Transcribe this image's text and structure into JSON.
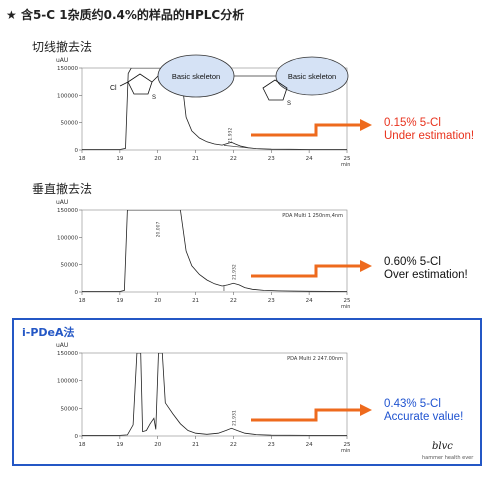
{
  "title": {
    "star": "★",
    "text": "含5-C 1杂质约0.4%的样品的HPLC分析"
  },
  "logo": {
    "mark": "blvc",
    "sub": "hammer health ever"
  },
  "chart_data": [
    {
      "type": "line",
      "method_label": "切线撤去法",
      "ylabel": "uAU",
      "xlabel": "min",
      "xlim": [
        18,
        25
      ],
      "ylim": [
        0,
        150000
      ],
      "x_ticks": [
        "18",
        "19",
        "20",
        "21",
        "22",
        "23",
        "24",
        "25"
      ],
      "y_ticks": [
        "0",
        "50000",
        "100000",
        "150000"
      ],
      "detector_label": "",
      "peak_labels": [
        {
          "x": 21.95,
          "y": 12000,
          "text": "21.932"
        }
      ],
      "bubbles": [
        "Basic skeleton",
        "Basic skeleton"
      ],
      "structure_label": "Cl",
      "result_lines": [
        "0.15% 5-Cl",
        "Under estimation!"
      ],
      "result_color": "#e8321d",
      "trace": [
        [
          18.0,
          1000
        ],
        [
          19.0,
          1000
        ],
        [
          19.15,
          3000
        ],
        [
          19.22,
          140000
        ],
        [
          19.3,
          150000
        ],
        [
          20.2,
          150000
        ],
        [
          20.6,
          150000
        ],
        [
          20.75,
          60000
        ],
        [
          20.9,
          35000
        ],
        [
          21.1,
          22000
        ],
        [
          21.3,
          15000
        ],
        [
          21.5,
          11000
        ],
        [
          21.7,
          9000
        ],
        [
          21.85,
          12000
        ],
        [
          21.95,
          14000
        ],
        [
          22.05,
          11000
        ],
        [
          22.2,
          7000
        ],
        [
          22.4,
          4000
        ],
        [
          22.6,
          2500
        ],
        [
          23.0,
          1500
        ],
        [
          23.5,
          1200
        ],
        [
          24.0,
          1000
        ],
        [
          25.0,
          1000
        ]
      ],
      "baseline_segment": [
        [
          21.75,
          8500
        ],
        [
          22.4,
          3800
        ]
      ]
    },
    {
      "type": "line",
      "method_label": "垂直撤去法",
      "ylabel": "uAU",
      "xlabel": "min",
      "xlim": [
        18,
        25
      ],
      "ylim": [
        0,
        150000
      ],
      "x_ticks": [
        "18",
        "19",
        "20",
        "21",
        "22",
        "23",
        "24",
        "25"
      ],
      "y_ticks": [
        "0",
        "50000",
        "100000",
        "150000"
      ],
      "detector_label": "PDA Multi 1 250nm,4nm",
      "peak_labels": [
        {
          "x": 20.05,
          "y": 100000,
          "text": "20.007"
        },
        {
          "x": 22.05,
          "y": 22000,
          "text": "21.932"
        }
      ],
      "bubbles": [],
      "structure_label": "",
      "result_lines": [
        "0.60% 5-Cl",
        "Over estimation!"
      ],
      "result_color": "#111111",
      "trace": [
        [
          18.0,
          1000
        ],
        [
          19.0,
          1000
        ],
        [
          19.12,
          3000
        ],
        [
          19.2,
          150000
        ],
        [
          20.2,
          150000
        ],
        [
          20.6,
          150000
        ],
        [
          20.75,
          75000
        ],
        [
          20.9,
          48000
        ],
        [
          21.1,
          32000
        ],
        [
          21.3,
          22000
        ],
        [
          21.5,
          15000
        ],
        [
          21.7,
          11000
        ],
        [
          21.85,
          13000
        ],
        [
          22.0,
          16000
        ],
        [
          22.15,
          13000
        ],
        [
          22.3,
          8000
        ],
        [
          22.5,
          5000
        ],
        [
          22.8,
          3000
        ],
        [
          23.2,
          2000
        ],
        [
          24.0,
          1200
        ],
        [
          25.0,
          1000
        ]
      ],
      "drop_line": {
        "x": 21.75,
        "y": 11000
      }
    },
    {
      "type": "line",
      "method_label": "i-PDeA法",
      "ylabel": "uAU",
      "xlabel": "min",
      "xlim": [
        18,
        25
      ],
      "ylim": [
        0,
        150000
      ],
      "x_ticks": [
        "18",
        "19",
        "20",
        "21",
        "22",
        "23",
        "24",
        "25"
      ],
      "y_ticks": [
        "0",
        "50000",
        "100000",
        "150000"
      ],
      "detector_label": "PDA Multi 2 247.00nm",
      "peak_labels": [
        {
          "x": 22.05,
          "y": 18000,
          "text": "21.931"
        }
      ],
      "bubbles": [],
      "structure_label": "",
      "result_lines": [
        "0.43% 5-Cl",
        "Accurate value!"
      ],
      "result_color": "#1f53d0",
      "trace": [
        [
          18.0,
          1000
        ],
        [
          19.0,
          1000
        ],
        [
          19.2,
          2000
        ],
        [
          19.35,
          20000
        ],
        [
          19.45,
          150000
        ],
        [
          19.55,
          150000
        ],
        [
          19.6,
          8000
        ],
        [
          19.7,
          10000
        ],
        [
          19.8,
          22000
        ],
        [
          19.9,
          32000
        ],
        [
          19.95,
          12000
        ],
        [
          20.02,
          150000
        ],
        [
          20.12,
          150000
        ],
        [
          20.2,
          60000
        ],
        [
          20.4,
          40000
        ],
        [
          20.6,
          22000
        ],
        [
          20.8,
          10000
        ],
        [
          21.0,
          5000
        ],
        [
          21.3,
          3000
        ],
        [
          21.6,
          5000
        ],
        [
          21.8,
          10000
        ],
        [
          21.95,
          14000
        ],
        [
          22.1,
          10000
        ],
        [
          22.3,
          5000
        ],
        [
          22.6,
          2500
        ],
        [
          23.0,
          1500
        ],
        [
          24.0,
          1000
        ],
        [
          25.0,
          1000
        ]
      ]
    }
  ]
}
